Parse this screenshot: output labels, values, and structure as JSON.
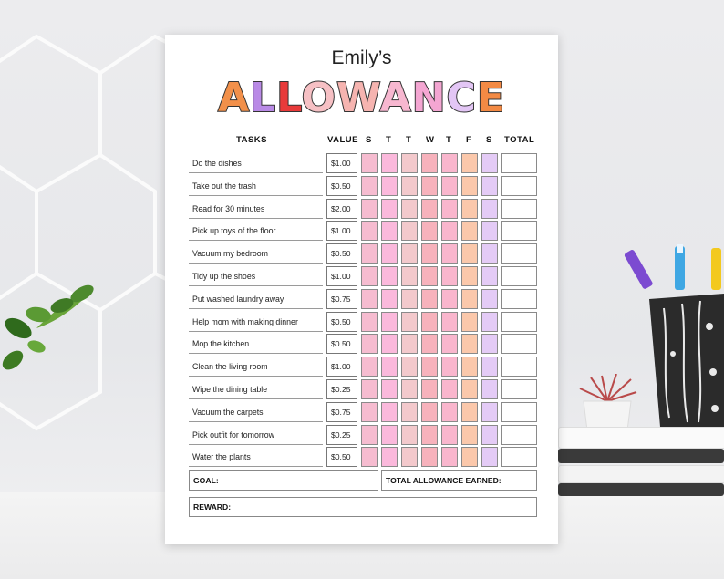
{
  "chart": {
    "name": "Emily’s",
    "title_letters": [
      {
        "ch": "A",
        "color": "#f2904a"
      },
      {
        "ch": "L",
        "color": "#b98ae6"
      },
      {
        "ch": "L",
        "color": "#e83a3a"
      },
      {
        "ch": "O",
        "color": "#f6c0c4"
      },
      {
        "ch": "W",
        "color": "#f6b4b0"
      },
      {
        "ch": "A",
        "color": "#f7b7d0"
      },
      {
        "ch": "N",
        "color": "#f4a6d2"
      },
      {
        "ch": "C",
        "color": "#e3c6f5"
      },
      {
        "ch": "E",
        "color": "#f38a44"
      }
    ],
    "headers": {
      "tasks": "TASKS",
      "value": "VALUE",
      "days": [
        "S",
        "T",
        "T",
        "W",
        "T",
        "F",
        "S"
      ],
      "total": "TOTAL"
    },
    "day_colors": [
      "#f6bcd0",
      "#fbb9dc",
      "#f3c9cc",
      "#f7b2bc",
      "#f9b6cd",
      "#fbc8ab",
      "#e4cbf6"
    ],
    "tasks": [
      {
        "task": "Do the dishes",
        "value": "$1.00"
      },
      {
        "task": "Take out the trash",
        "value": "$0.50"
      },
      {
        "task": "Read for 30 minutes",
        "value": "$2.00"
      },
      {
        "task": "Pick up toys of the floor",
        "value": "$1.00"
      },
      {
        "task": "Vacuum my bedroom",
        "value": "$0.50"
      },
      {
        "task": "Tidy up the shoes",
        "value": "$1.00"
      },
      {
        "task": "Put washed laundry away",
        "value": "$0.75"
      },
      {
        "task": "Help mom with making dinner",
        "value": "$0.50"
      },
      {
        "task": "Mop the kitchen",
        "value": "$0.50"
      },
      {
        "task": "Clean the living room",
        "value": "$1.00"
      },
      {
        "task": "Wipe the dining table",
        "value": "$0.25"
      },
      {
        "task": "Vacuum the carpets",
        "value": "$0.75"
      },
      {
        "task": "Pick outfit for tomorrow",
        "value": "$0.25"
      },
      {
        "task": "Water the plants",
        "value": "$0.50"
      }
    ],
    "goal_label": "GOAL:",
    "total_earned_label": "TOTAL ALLOWANCE EARNED:",
    "reward_label": "REWARD:"
  }
}
